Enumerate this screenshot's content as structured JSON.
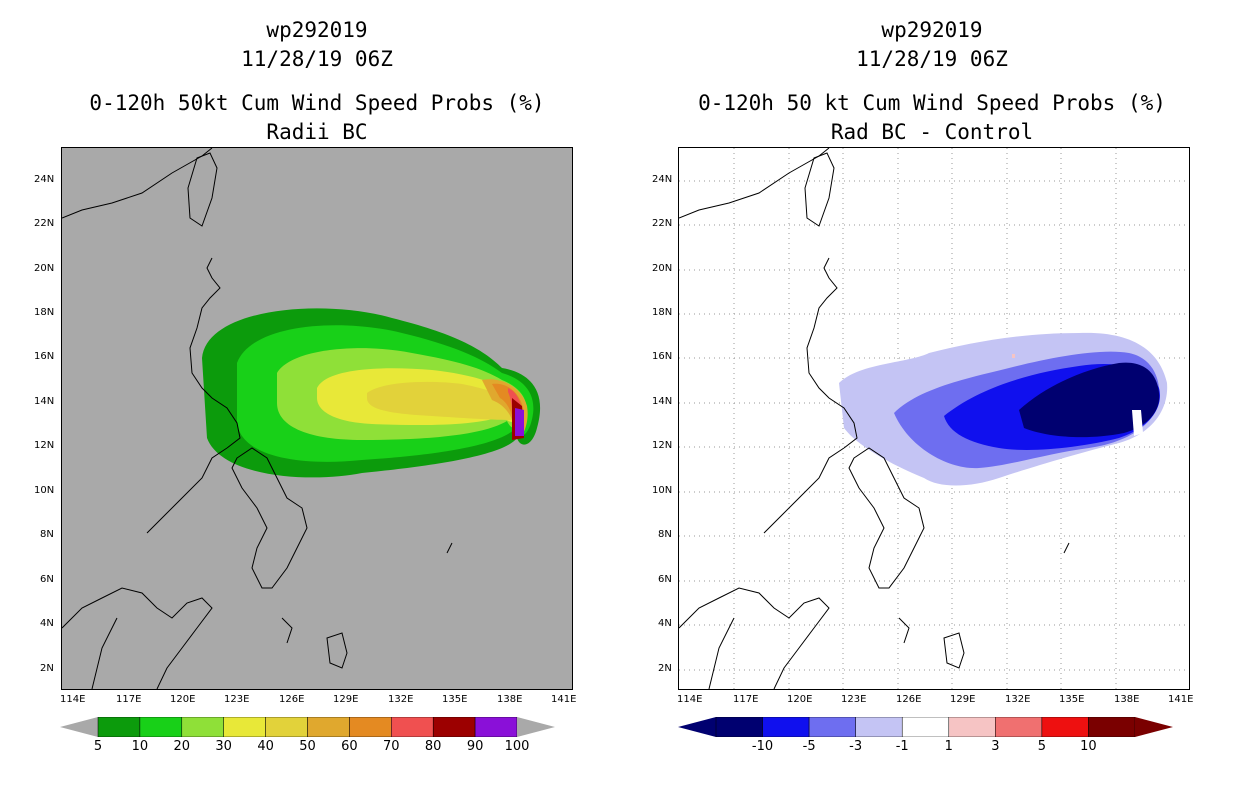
{
  "panels": [
    {
      "id": "left",
      "title_lines": [
        "wp292019",
        "11/28/19 06Z",
        "0-120h 50kt Cum Wind Speed Probs (%)",
        "Radii BC"
      ],
      "background": "#a9a9a9",
      "lat_labels": [
        "24N",
        "22N",
        "20N",
        "18N",
        "16N",
        "14N",
        "12N",
        "10N",
        "8N",
        "6N",
        "4N",
        "2N"
      ],
      "lon_labels": [
        "114E",
        "117E",
        "120E",
        "123E",
        "126E",
        "129E",
        "132E",
        "135E",
        "138E",
        "141E"
      ],
      "colorbar": {
        "colors": [
          "#0c9b0c",
          "#18d018",
          "#8fe038",
          "#e8e838",
          "#e2d23a",
          "#e0a82e",
          "#e48a22",
          "#f05050",
          "#9c0000",
          "#8a10d8"
        ],
        "labels": [
          "5",
          "10",
          "20",
          "30",
          "40",
          "50",
          "60",
          "70",
          "80",
          "90",
          "100"
        ]
      }
    },
    {
      "id": "right",
      "title_lines": [
        "wp292019",
        "11/28/19 06Z",
        "0-120h 50 kt Cum Wind Speed Probs (%)",
        "Rad BC - Control"
      ],
      "background": "#ffffff",
      "lat_labels": [
        "24N",
        "22N",
        "20N",
        "18N",
        "16N",
        "14N",
        "12N",
        "10N",
        "8N",
        "6N",
        "4N",
        "2N"
      ],
      "lon_labels": [
        "114E",
        "117E",
        "120E",
        "123E",
        "126E",
        "129E",
        "132E",
        "135E",
        "138E",
        "141E"
      ],
      "colorbar": {
        "colors": [
          "#000070",
          "#1010ee",
          "#6e6ef0",
          "#c4c4f4",
          "#ffffff",
          "#f6c4c4",
          "#f07070",
          "#ee1010",
          "#7a0000"
        ],
        "labels": [
          "-10",
          "-5",
          "-3",
          "-1",
          "1",
          "3",
          "5",
          "10"
        ]
      }
    }
  ]
}
